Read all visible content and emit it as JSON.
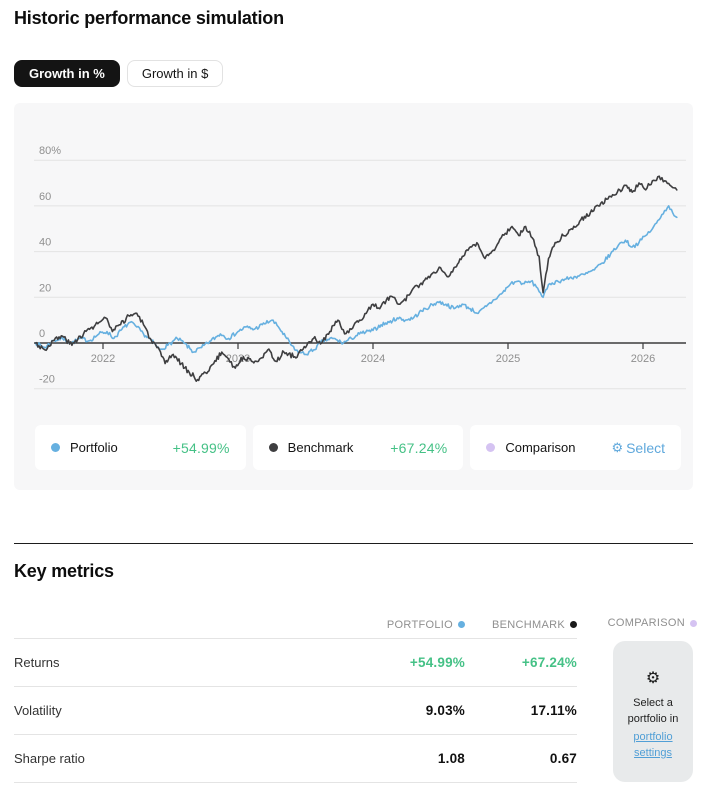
{
  "header": {
    "title": "Historic performance simulation"
  },
  "toggle": {
    "percent_label": "Growth in %",
    "dollar_label": "Growth in $"
  },
  "colors": {
    "portfolio_blue": "#66b0e0",
    "benchmark_dark": "#3e3e40",
    "comparison_lavender": "#d5c3f2",
    "positive_green": "#45c186",
    "link_blue": "#5fa8dc",
    "grid_gray": "#e3e3e3",
    "axis_dark": "#3c3c3c",
    "panel_bg": "#f7f7f8"
  },
  "legend": {
    "portfolio": {
      "label": "Portfolio",
      "value": "+54.99%"
    },
    "benchmark": {
      "label": "Benchmark",
      "value": "+67.24%"
    },
    "comparison": {
      "label": "Comparison",
      "action": "Select"
    }
  },
  "key_metrics": {
    "title": "Key metrics",
    "columns": [
      {
        "label": "PORTFOLIO",
        "dot": "#66b0e0"
      },
      {
        "label": "BENCHMARK",
        "dot": "#1a1a1a"
      },
      {
        "label": "COMPARISON",
        "dot": "#d5c3f2"
      }
    ],
    "rows": [
      {
        "label": "Returns",
        "portfolio": "+54.99%",
        "benchmark": "+67.24%",
        "positive": true
      },
      {
        "label": "Volatility",
        "portfolio": "9.03%",
        "benchmark": "17.11%",
        "positive": false
      },
      {
        "label": "Sharpe ratio",
        "portfolio": "1.08",
        "benchmark": "0.67",
        "positive": false
      }
    ],
    "comparison_card": {
      "icon": "gear-icon",
      "text": "Select a portfolio in",
      "link": "portfolio settings"
    }
  },
  "chart_data": {
    "type": "line",
    "unit": "percent growth",
    "x_ticks": [
      2022,
      2023,
      2024,
      2025,
      2026
    ],
    "y_tick_values": [
      80,
      60,
      40,
      20,
      0,
      -20
    ],
    "y_tick_labels": [
      "80%",
      "60",
      "40",
      "20",
      "0",
      "-20"
    ],
    "x_range": [
      2021.5,
      2026.3
    ],
    "y_axis_zero_line": true,
    "grid": true,
    "legend_position": "bottom",
    "series": [
      {
        "name": "Portfolio",
        "color": "#66b0e0",
        "final_return": "+54.99%",
        "points": [
          [
            2021.5,
            0
          ],
          [
            2021.57,
            -2
          ],
          [
            2021.63,
            1
          ],
          [
            2021.7,
            2
          ],
          [
            2021.77,
            0
          ],
          [
            2021.83,
            2
          ],
          [
            2021.9,
            1
          ],
          [
            2021.97,
            4
          ],
          [
            2022.03,
            5
          ],
          [
            2022.08,
            2
          ],
          [
            2022.14,
            6
          ],
          [
            2022.2,
            9
          ],
          [
            2022.25,
            7
          ],
          [
            2022.3,
            4
          ],
          [
            2022.36,
            1
          ],
          [
            2022.42,
            -3
          ],
          [
            2022.48,
            -1
          ],
          [
            2022.55,
            2
          ],
          [
            2022.6,
            0
          ],
          [
            2022.67,
            -4
          ],
          [
            2022.73,
            -2
          ],
          [
            2022.8,
            1
          ],
          [
            2022.87,
            4
          ],
          [
            2022.93,
            2
          ],
          [
            2023.0,
            5
          ],
          [
            2023.06,
            7
          ],
          [
            2023.12,
            6
          ],
          [
            2023.18,
            8
          ],
          [
            2023.25,
            10
          ],
          [
            2023.3,
            7
          ],
          [
            2023.36,
            2
          ],
          [
            2023.42,
            -3
          ],
          [
            2023.5,
            -5
          ],
          [
            2023.56,
            -3
          ],
          [
            2023.63,
            1
          ],
          [
            2023.7,
            2
          ],
          [
            2023.78,
            0
          ],
          [
            2023.84,
            2
          ],
          [
            2023.9,
            4
          ],
          [
            2024.0,
            5.5
          ],
          [
            2024.06,
            8
          ],
          [
            2024.12,
            9
          ],
          [
            2024.18,
            11
          ],
          [
            2024.24,
            10
          ],
          [
            2024.3,
            11
          ],
          [
            2024.36,
            14
          ],
          [
            2024.42,
            16
          ],
          [
            2024.48,
            18
          ],
          [
            2024.54,
            17
          ],
          [
            2024.6,
            15
          ],
          [
            2024.66,
            17
          ],
          [
            2024.72,
            15
          ],
          [
            2024.78,
            13
          ],
          [
            2024.84,
            16
          ],
          [
            2024.9,
            19
          ],
          [
            2024.96,
            22
          ],
          [
            2025.02,
            26
          ],
          [
            2025.07,
            27
          ],
          [
            2025.12,
            26
          ],
          [
            2025.17,
            27
          ],
          [
            2025.22,
            24
          ],
          [
            2025.26,
            20
          ],
          [
            2025.31,
            26
          ],
          [
            2025.37,
            27
          ],
          [
            2025.43,
            28
          ],
          [
            2025.5,
            29
          ],
          [
            2025.57,
            30
          ],
          [
            2025.64,
            32
          ],
          [
            2025.7,
            35
          ],
          [
            2025.76,
            39
          ],
          [
            2025.82,
            43
          ],
          [
            2025.87,
            45
          ],
          [
            2025.92,
            42
          ],
          [
            2025.97,
            44
          ],
          [
            2026.02,
            47
          ],
          [
            2026.07,
            50
          ],
          [
            2026.12,
            54
          ],
          [
            2026.16,
            58
          ],
          [
            2026.19,
            60
          ],
          [
            2026.22,
            57
          ],
          [
            2026.25,
            55
          ]
        ]
      },
      {
        "name": "Benchmark",
        "color": "#3e3e40",
        "final_return": "+67.24%",
        "points": [
          [
            2021.5,
            0
          ],
          [
            2021.57,
            -3
          ],
          [
            2021.63,
            1
          ],
          [
            2021.7,
            3
          ],
          [
            2021.77,
            -1
          ],
          [
            2021.83,
            3
          ],
          [
            2021.9,
            6
          ],
          [
            2021.97,
            9
          ],
          [
            2022.02,
            11
          ],
          [
            2022.07,
            5
          ],
          [
            2022.13,
            8
          ],
          [
            2022.19,
            12
          ],
          [
            2022.25,
            13
          ],
          [
            2022.3,
            8
          ],
          [
            2022.35,
            2
          ],
          [
            2022.4,
            -2
          ],
          [
            2022.46,
            -9
          ],
          [
            2022.52,
            -5
          ],
          [
            2022.58,
            -9
          ],
          [
            2022.64,
            -13
          ],
          [
            2022.7,
            -16
          ],
          [
            2022.76,
            -13
          ],
          [
            2022.82,
            -9
          ],
          [
            2022.88,
            -4
          ],
          [
            2022.93,
            -7
          ],
          [
            2022.98,
            -11
          ],
          [
            2023.04,
            -6
          ],
          [
            2023.1,
            -8
          ],
          [
            2023.16,
            -7
          ],
          [
            2023.22,
            -3
          ],
          [
            2023.28,
            -8
          ],
          [
            2023.34,
            -4
          ],
          [
            2023.42,
            -6
          ],
          [
            2023.5,
            -2
          ],
          [
            2023.56,
            2
          ],
          [
            2023.62,
            0
          ],
          [
            2023.68,
            5
          ],
          [
            2023.74,
            10
          ],
          [
            2023.79,
            4
          ],
          [
            2023.84,
            6
          ],
          [
            2023.9,
            10
          ],
          [
            2023.95,
            13
          ],
          [
            2024.0,
            17
          ],
          [
            2024.05,
            15
          ],
          [
            2024.1,
            19
          ],
          [
            2024.15,
            20
          ],
          [
            2024.2,
            17
          ],
          [
            2024.27,
            21
          ],
          [
            2024.33,
            25
          ],
          [
            2024.4,
            28
          ],
          [
            2024.45,
            31
          ],
          [
            2024.5,
            33
          ],
          [
            2024.55,
            29
          ],
          [
            2024.6,
            33
          ],
          [
            2024.67,
            38
          ],
          [
            2024.73,
            42
          ],
          [
            2024.78,
            43
          ],
          [
            2024.83,
            37
          ],
          [
            2024.88,
            40
          ],
          [
            2024.93,
            44
          ],
          [
            2024.98,
            48
          ],
          [
            2025.03,
            51
          ],
          [
            2025.08,
            47
          ],
          [
            2025.13,
            51
          ],
          [
            2025.18,
            46
          ],
          [
            2025.23,
            38
          ],
          [
            2025.26,
            22
          ],
          [
            2025.3,
            37
          ],
          [
            2025.35,
            44
          ],
          [
            2025.41,
            47
          ],
          [
            2025.47,
            50
          ],
          [
            2025.54,
            54
          ],
          [
            2025.61,
            57
          ],
          [
            2025.67,
            60
          ],
          [
            2025.74,
            63
          ],
          [
            2025.81,
            66
          ],
          [
            2025.87,
            69
          ],
          [
            2025.92,
            66
          ],
          [
            2025.97,
            70
          ],
          [
            2026.02,
            67
          ],
          [
            2026.07,
            71
          ],
          [
            2026.12,
            73
          ],
          [
            2026.16,
            71
          ],
          [
            2026.2,
            69
          ],
          [
            2026.25,
            67
          ]
        ]
      }
    ]
  }
}
